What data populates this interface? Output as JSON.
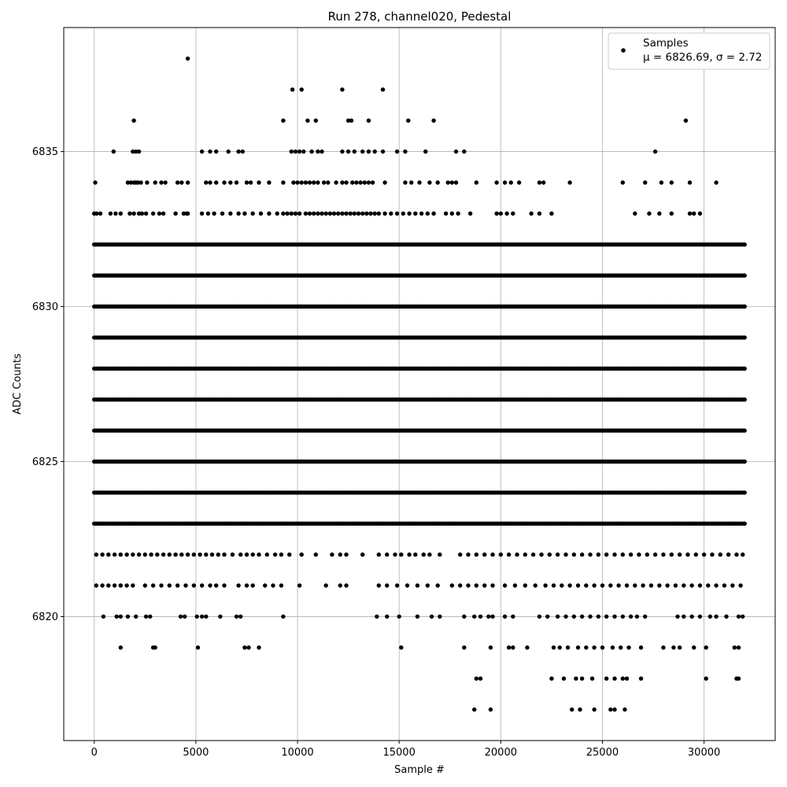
{
  "chart_data": {
    "type": "scatter",
    "title": "Run 278, channel020, Pedestal",
    "xlabel": "Sample #",
    "ylabel": "ADC Counts",
    "xlim": [
      -1500,
      33500
    ],
    "ylim": [
      6816,
      6839
    ],
    "x_ticks": [
      0,
      5000,
      10000,
      15000,
      20000,
      25000,
      30000
    ],
    "y_ticks": [
      6820,
      6825,
      6830,
      6835
    ],
    "grid": true,
    "legend": {
      "placement": "top-right",
      "entries": [
        {
          "line1": "Samples",
          "line2": "μ = 6826.69, σ = 2.72"
        }
      ]
    },
    "series": [
      {
        "name": "Samples",
        "color": "#000000",
        "marker": "circle",
        "dense_levels": {
          "x_start": 0,
          "x_end": 31999,
          "values": [
            6823,
            6824,
            6825,
            6826,
            6827,
            6828,
            6829,
            6830,
            6831,
            6832
          ]
        },
        "sparse_levels": [
          {
            "y": 6833,
            "x": [
              0,
              120,
              300,
              800,
              1050,
              1300,
              1750,
              1950,
              2200,
              2350,
              2550,
              2900,
              3200,
              3400,
              4000,
              4400,
              4550,
              4600,
              5300,
              5600,
              5900,
              6300,
              6700,
              7100,
              7400,
              7800,
              8200,
              8600,
              9000,
              9300,
              9500,
              9700,
              9900,
              10100,
              10400,
              10600,
              10800,
              11000,
              11200,
              11400,
              11600,
              11800,
              12000,
              12200,
              12400,
              12600,
              12800,
              13000,
              13200,
              13400,
              13600,
              13800,
              14000,
              14300,
              14600,
              14900,
              15200,
              15500,
              15800,
              16100,
              16400,
              16700,
              17300,
              17600,
              17900,
              18500,
              19800,
              20000,
              20300,
              20600,
              21500,
              21900,
              22500,
              26600,
              27300,
              27800,
              28400,
              29300,
              29500,
              29800
            ]
          },
          {
            "y": 6834,
            "x": [
              50,
              1650,
              1800,
              1950,
              2050,
              2150,
              2300,
              2600,
              3000,
              3300,
              3500,
              4100,
              4300,
              4600,
              5500,
              5700,
              6000,
              6400,
              6700,
              7000,
              7500,
              7700,
              8100,
              8600,
              9300,
              9800,
              10000,
              10200,
              10400,
              10600,
              10800,
              11000,
              11300,
              11500,
              11900,
              12200,
              12400,
              12700,
              12900,
              13100,
              13300,
              13500,
              13700,
              14300,
              15300,
              15600,
              16000,
              16500,
              16900,
              17400,
              17600,
              17800,
              18800,
              19800,
              20200,
              20500,
              20900,
              21900,
              22100,
              23400,
              26000,
              27100,
              27900,
              28400,
              29300,
              30600
            ]
          },
          {
            "y": 6835,
            "x": [
              950,
              1900,
              2050,
              2200,
              5300,
              5700,
              6000,
              6600,
              7100,
              7300,
              9700,
              9900,
              10100,
              10300,
              10700,
              11000,
              11200,
              12200,
              12500,
              12800,
              13200,
              13500,
              13800,
              14200,
              14900,
              15300,
              16300,
              17800,
              18200,
              27600
            ]
          },
          {
            "y": 6836,
            "x": [
              1950,
              9300,
              10500,
              10900,
              12500,
              12650,
              13500,
              15450,
              16700,
              29100
            ]
          },
          {
            "y": 6837,
            "x": [
              9750,
              10200,
              12200,
              14200
            ]
          },
          {
            "y": 6838,
            "x": [
              4600
            ]
          },
          {
            "y": 6822,
            "x": [
              100,
              400,
              700,
              1000,
              1300,
              1600,
              1900,
              2200,
              2500,
              2800,
              3100,
              3400,
              3700,
              4000,
              4300,
              4600,
              4900,
              5200,
              5500,
              5800,
              6100,
              6400,
              6800,
              7200,
              7500,
              7800,
              8100,
              8500,
              8900,
              9200,
              9600,
              10200,
              10900,
              11700,
              12100,
              12400,
              13200,
              14000,
              14400,
              14800,
              15100,
              15500,
              15800,
              16200,
              16500,
              17000,
              18000,
              18400,
              18800,
              19200,
              19600,
              20000,
              20400,
              20800,
              21200,
              21600,
              22000,
              22400,
              22800,
              23200,
              23600,
              24000,
              24400,
              24800,
              25200,
              25600,
              26000,
              26400,
              26800,
              27200,
              27600,
              28000,
              28400,
              28800,
              29200,
              29600,
              30000,
              30400,
              30800,
              31200,
              31600,
              31900
            ]
          },
          {
            "y": 6821,
            "x": [
              100,
              400,
              700,
              1000,
              1300,
              1600,
              1900,
              2500,
              2900,
              3300,
              3700,
              4100,
              4500,
              4900,
              5300,
              5700,
              6000,
              6400,
              7100,
              7500,
              7800,
              8400,
              8800,
              9200,
              10100,
              11400,
              12100,
              12400,
              14000,
              14400,
              14900,
              15400,
              15900,
              16400,
              16900,
              17600,
              18000,
              18400,
              18800,
              19200,
              19600,
              20200,
              20700,
              21200,
              21700,
              22200,
              22600,
              23000,
              23400,
              23800,
              24200,
              24600,
              25000,
              25400,
              25800,
              26200,
              26600,
              27000,
              27400,
              27800,
              28200,
              28600,
              29000,
              29400,
              29800,
              30200,
              30600,
              31000,
              31400,
              31800
            ]
          },
          {
            "y": 6820,
            "x": [
              450,
              1100,
              1300,
              1650,
              2050,
              2550,
              2750,
              4250,
              4450,
              5050,
              5300,
              5500,
              6200,
              7000,
              7200,
              9300,
              13900,
              14400,
              15000,
              15900,
              16600,
              17000,
              18200,
              18700,
              19000,
              19400,
              19600,
              20200,
              20600,
              21900,
              22300,
              22800,
              23200,
              23600,
              24000,
              24400,
              24800,
              25200,
              25600,
              26000,
              26400,
              26700,
              27100,
              28700,
              29000,
              29400,
              29800,
              30300,
              30600,
              31100,
              31700,
              31900
            ]
          },
          {
            "y": 6819,
            "x": [
              1300,
              2900,
              3000,
              5100,
              7400,
              7600,
              8100,
              15100,
              18200,
              19500,
              20400,
              20600,
              21300,
              22600,
              22900,
              23300,
              23800,
              24200,
              24600,
              25000,
              25500,
              25900,
              26300,
              26900,
              28000,
              28500,
              28800,
              29500,
              30100,
              31500,
              31700
            ]
          },
          {
            "y": 6818,
            "x": [
              18800,
              19000,
              22500,
              23100,
              23700,
              24000,
              24500,
              25200,
              25600,
              26000,
              26200,
              26900,
              30100,
              31600,
              31700
            ]
          },
          {
            "y": 6817,
            "x": [
              18700,
              19500,
              23500,
              23900,
              24600,
              25400,
              25600,
              26100
            ]
          }
        ]
      }
    ]
  }
}
